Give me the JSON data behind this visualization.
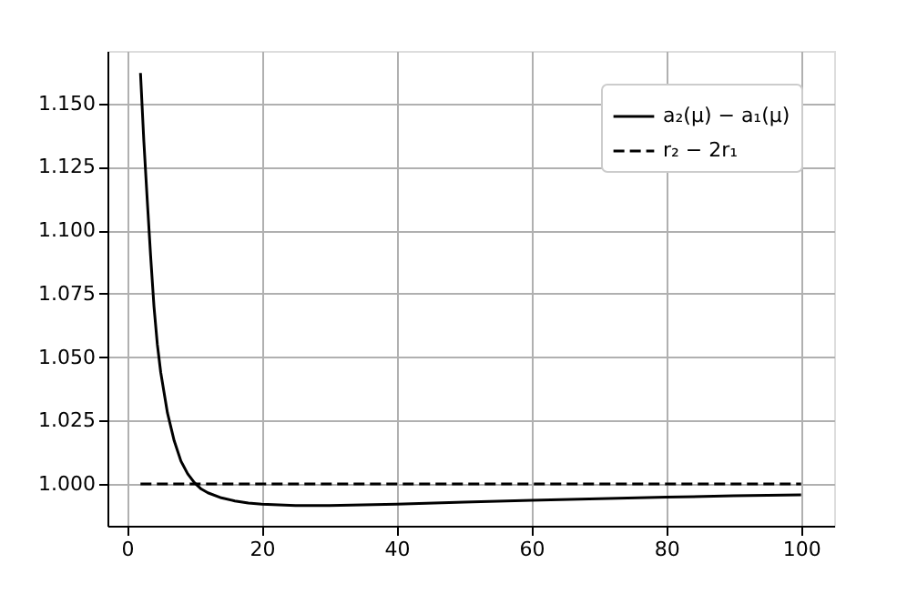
{
  "chart_data": {
    "type": "line",
    "xlim": [
      -2.9,
      104.9
    ],
    "xticks": [
      0,
      20,
      40,
      60,
      80,
      100
    ],
    "ylim": [
      0.9835,
      1.1707
    ],
    "yticks": [
      {
        "value": 1.0,
        "label": "1.000"
      },
      {
        "value": 1.025,
        "label": "1.025"
      },
      {
        "value": 1.05,
        "label": "1.050"
      },
      {
        "value": 1.075,
        "label": "1.075"
      },
      {
        "value": 1.1,
        "label": "1.100"
      },
      {
        "value": 1.125,
        "label": "1.125"
      },
      {
        "value": 1.15,
        "label": "1.150"
      }
    ],
    "grid": true,
    "legend": "top right",
    "series": [
      {
        "name": "a₂(μ) − a₁(μ)",
        "color": "#000000",
        "line_style": "solid",
        "x": [
          2,
          2.5,
          3,
          3.5,
          4,
          4.5,
          5,
          6,
          7,
          8,
          9,
          10,
          11,
          12,
          14,
          16,
          18,
          20,
          25,
          30,
          40,
          50,
          60,
          70,
          80,
          90,
          100
        ],
        "values": [
          1.162,
          1.135,
          1.112,
          1.09,
          1.07,
          1.055,
          1.044,
          1.028,
          1.017,
          1.009,
          1.004,
          1.0005,
          0.998,
          0.9965,
          0.9945,
          0.9933,
          0.9925,
          0.992,
          0.9915,
          0.9915,
          0.992,
          0.9928,
          0.9935,
          0.9942,
          0.9948,
          0.9953,
          0.9957
        ]
      },
      {
        "name": "r₂ − 2r₁",
        "color": "#000000",
        "line_style": "dashed",
        "x": [
          2,
          100
        ],
        "values": [
          1.0,
          1.0
        ]
      }
    ]
  }
}
